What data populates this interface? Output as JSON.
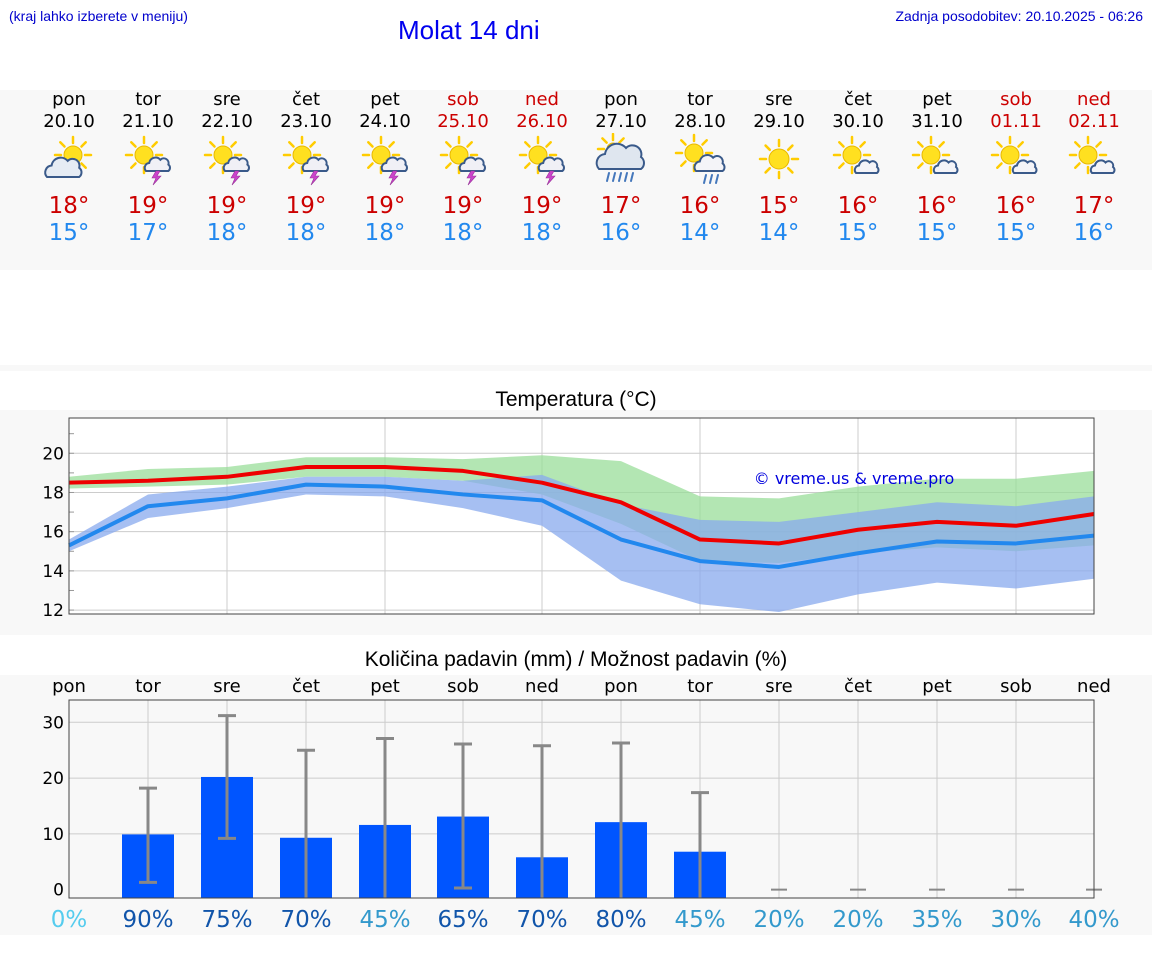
{
  "header": {
    "hint": "(kraj lahko izberete v meniju)",
    "title": "Molat 14 dni",
    "updated": "Zadnja posodobitev: 20.10.2025 - 06:26"
  },
  "days": [
    {
      "name": "pon",
      "date": "20.10",
      "weekend": false,
      "icon": "sun-cloud-icon",
      "max": "18°",
      "min": "15°",
      "prob": "0%",
      "probColor": "#55ccee"
    },
    {
      "name": "tor",
      "date": "21.10",
      "weekend": false,
      "icon": "sun-storm-icon",
      "max": "19°",
      "min": "17°",
      "prob": "90%",
      "probColor": "#1155aa"
    },
    {
      "name": "sre",
      "date": "22.10",
      "weekend": false,
      "icon": "sun-storm-icon",
      "max": "19°",
      "min": "18°",
      "prob": "75%",
      "probColor": "#1155aa"
    },
    {
      "name": "čet",
      "date": "23.10",
      "weekend": false,
      "icon": "sun-storm-icon",
      "max": "19°",
      "min": "18°",
      "prob": "70%",
      "probColor": "#1155aa"
    },
    {
      "name": "pet",
      "date": "24.10",
      "weekend": false,
      "icon": "sun-storm-icon",
      "max": "19°",
      "min": "18°",
      "prob": "45%",
      "probColor": "#3399cc"
    },
    {
      "name": "sob",
      "date": "25.10",
      "weekend": true,
      "icon": "sun-storm-icon",
      "max": "19°",
      "min": "18°",
      "prob": "65%",
      "probColor": "#1155aa"
    },
    {
      "name": "ned",
      "date": "26.10",
      "weekend": true,
      "icon": "sun-storm-icon",
      "max": "19°",
      "min": "18°",
      "prob": "70%",
      "probColor": "#1155aa"
    },
    {
      "name": "pon",
      "date": "27.10",
      "weekend": false,
      "icon": "rain-cloud-icon",
      "max": "17°",
      "min": "16°",
      "prob": "80%",
      "probColor": "#1155aa"
    },
    {
      "name": "tor",
      "date": "28.10",
      "weekend": false,
      "icon": "sun-rain-icon",
      "max": "16°",
      "min": "14°",
      "prob": "45%",
      "probColor": "#3399cc"
    },
    {
      "name": "sre",
      "date": "29.10",
      "weekend": false,
      "icon": "sun-icon",
      "max": "15°",
      "min": "14°",
      "prob": "20%",
      "probColor": "#3399cc"
    },
    {
      "name": "čet",
      "date": "30.10",
      "weekend": false,
      "icon": "sun-small-cloud-icon",
      "max": "16°",
      "min": "15°",
      "prob": "20%",
      "probColor": "#3399cc"
    },
    {
      "name": "pet",
      "date": "31.10",
      "weekend": false,
      "icon": "sun-small-cloud-icon",
      "max": "16°",
      "min": "15°",
      "prob": "35%",
      "probColor": "#3399cc"
    },
    {
      "name": "sob",
      "date": "01.11",
      "weekend": true,
      "icon": "sun-small-cloud-icon",
      "max": "16°",
      "min": "15°",
      "prob": "30%",
      "probColor": "#3399cc"
    },
    {
      "name": "ned",
      "date": "02.11",
      "weekend": true,
      "icon": "sun-small-cloud-icon",
      "max": "17°",
      "min": "16°",
      "prob": "40%",
      "probColor": "#3399cc"
    }
  ],
  "chart_data": [
    {
      "type": "line",
      "title": "Temperatura (°C)",
      "watermark": "© vreme.us & vreme.pro",
      "ylim": [
        11.8,
        21.8
      ],
      "yticks": [
        12,
        14,
        16,
        18,
        20
      ],
      "x": [
        0,
        1,
        2,
        3,
        4,
        5,
        6,
        7,
        8,
        9,
        10,
        11,
        12,
        13
      ],
      "series": [
        {
          "name": "max",
          "color": "#ee0000",
          "values": [
            18.5,
            18.6,
            18.8,
            19.3,
            19.3,
            19.1,
            18.5,
            17.5,
            15.6,
            15.4,
            16.1,
            16.5,
            16.3,
            16.9
          ]
        },
        {
          "name": "min",
          "color": "#2288ee",
          "values": [
            15.3,
            17.3,
            17.7,
            18.4,
            18.3,
            17.9,
            17.6,
            15.6,
            14.5,
            14.2,
            14.9,
            15.5,
            15.4,
            15.8
          ]
        }
      ],
      "bands": [
        {
          "name": "max-range",
          "color": "#99dd99",
          "low": [
            18.2,
            18.3,
            18.4,
            18.8,
            18.8,
            18.6,
            17.9,
            16.4,
            14.5,
            14.4,
            14.9,
            15.2,
            15.0,
            15.3
          ],
          "high": [
            18.8,
            19.2,
            19.3,
            19.8,
            19.8,
            19.7,
            19.9,
            19.6,
            17.8,
            17.7,
            18.3,
            18.7,
            18.7,
            19.1
          ]
        },
        {
          "name": "min-range",
          "color": "#88aaee",
          "low": [
            15.0,
            16.7,
            17.2,
            17.9,
            17.8,
            17.2,
            16.3,
            13.5,
            12.3,
            11.9,
            12.8,
            13.4,
            13.1,
            13.6
          ],
          "high": [
            15.6,
            17.9,
            18.3,
            18.8,
            18.8,
            18.6,
            18.9,
            17.4,
            16.6,
            16.5,
            17.0,
            17.5,
            17.3,
            17.8
          ]
        }
      ]
    },
    {
      "type": "bar",
      "title": "Količina padavin (mm) / Možnost padavin (%)",
      "ylim": [
        -1.5,
        34
      ],
      "yticks": [
        0,
        10,
        20,
        30
      ],
      "categories": [
        "pon",
        "tor",
        "sre",
        "čet",
        "pet",
        "sob",
        "ned",
        "pon",
        "tor",
        "sre",
        "čet",
        "pet",
        "sob",
        "ned"
      ],
      "values": [
        0,
        9.9,
        20.2,
        9.3,
        11.6,
        13.1,
        5.8,
        12.1,
        6.8,
        0,
        0,
        0,
        0,
        0
      ],
      "err_low": [
        0,
        1.3,
        9.2,
        0,
        0,
        0.3,
        0,
        0,
        0,
        0,
        0,
        0,
        0,
        0
      ],
      "err_high": [
        0,
        18.2,
        31.2,
        25.0,
        27.1,
        26.1,
        25.8,
        26.3,
        17.4,
        0,
        0,
        0,
        0,
        0
      ],
      "probability": [
        "0%",
        "90%",
        "75%",
        "70%",
        "45%",
        "65%",
        "70%",
        "80%",
        "45%",
        "20%",
        "20%",
        "35%",
        "30%",
        "40%"
      ]
    }
  ]
}
